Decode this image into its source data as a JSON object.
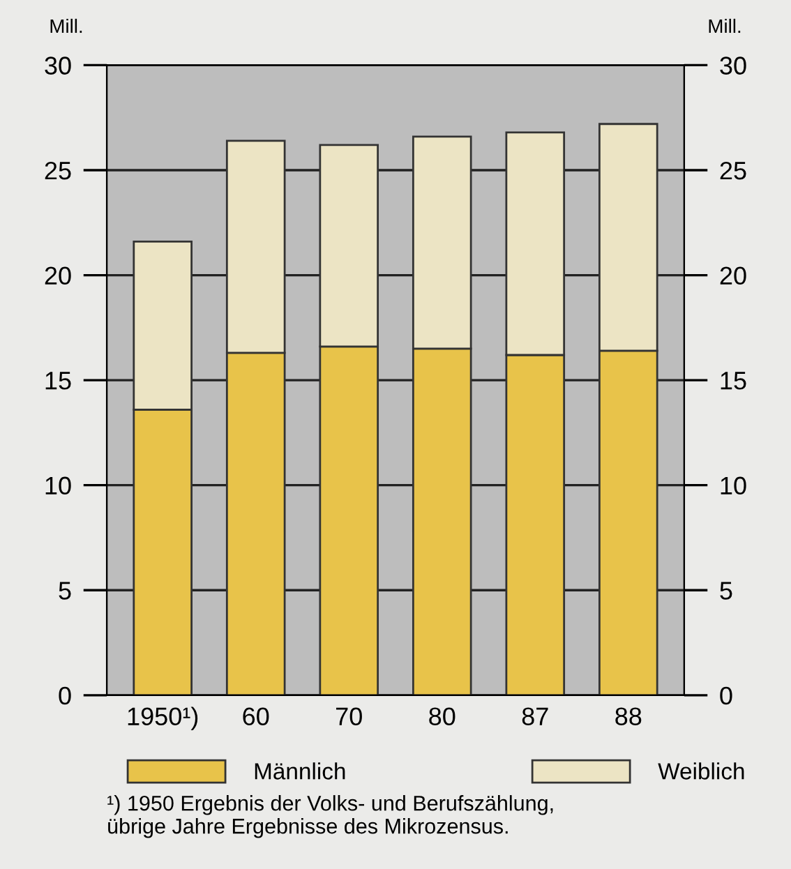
{
  "chart_data": {
    "type": "bar",
    "stacked": true,
    "ylabel": "Mill.",
    "y2label": "Mill.",
    "categories": [
      "1950¹)",
      "60",
      "70",
      "80",
      "87",
      "88"
    ],
    "series": [
      {
        "name": "Männlich",
        "color": "#e8c34a",
        "values": [
          13.6,
          16.3,
          16.6,
          16.5,
          16.2,
          16.4
        ]
      },
      {
        "name": "Weiblich",
        "color": "#ece4c4",
        "values": [
          8.0,
          10.1,
          9.6,
          10.1,
          10.6,
          10.8
        ]
      }
    ],
    "ylim": [
      0,
      30
    ],
    "yticks": [
      0,
      5,
      10,
      15,
      20,
      25,
      30
    ],
    "y2lim": [
      0,
      30
    ],
    "y2ticks": [
      0,
      5,
      10,
      15,
      20,
      25,
      30
    ],
    "grid": "y",
    "legend": "bottom",
    "annotations": [
      "¹) 1950 Ergebnis der Volks- und Berufszählung,\nübrige Jahre Ergebnisse des Mikrozensus."
    ]
  }
}
